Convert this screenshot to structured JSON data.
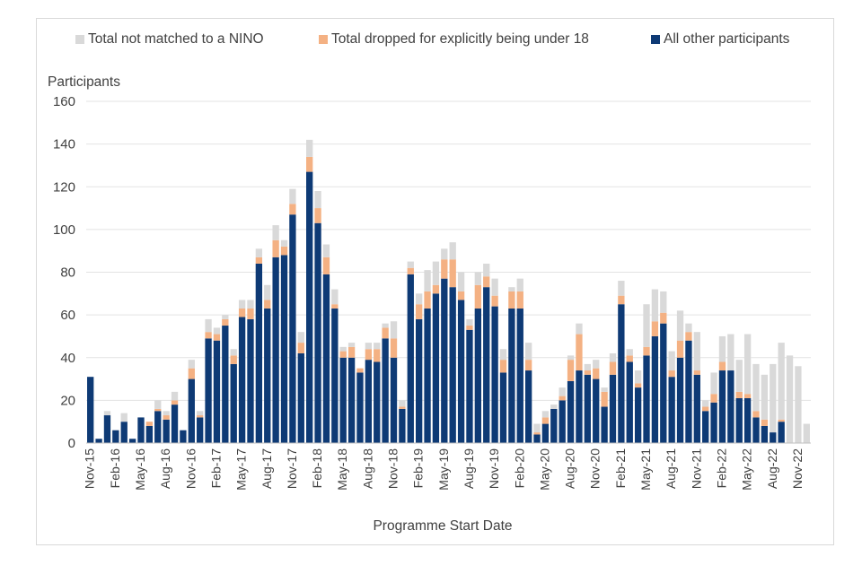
{
  "chart_data": {
    "type": "bar",
    "stacked": true,
    "ylabel": "Participants",
    "xlabel": "Programme Start Date",
    "ylim": [
      0,
      160
    ],
    "yticks": [
      0,
      20,
      40,
      60,
      80,
      100,
      120,
      140,
      160
    ],
    "grid": true,
    "legend_position": "top",
    "tick_labels": [
      "Nov-15",
      "Feb-16",
      "May-16",
      "Aug-16",
      "Nov-16",
      "Feb-17",
      "May-17",
      "Aug-17",
      "Nov-17",
      "Feb-18",
      "May-18",
      "Aug-18",
      "Nov-18",
      "Feb-19",
      "May-19",
      "Aug-19",
      "Nov-19",
      "Feb-20",
      "May-20",
      "Aug-20",
      "Nov-20",
      "Feb-21",
      "May-21",
      "Aug-21",
      "Nov-21",
      "Feb-22",
      "May-22",
      "Aug-22",
      "Nov-22"
    ],
    "series": [
      {
        "name": "All other participants",
        "color": "#0e3a75",
        "values": [
          31,
          2,
          13,
          6,
          10,
          2,
          12,
          8,
          15,
          11,
          18,
          6,
          30,
          12,
          49,
          48,
          55,
          37,
          59,
          58,
          84,
          63,
          87,
          88,
          107,
          42,
          127,
          103,
          79,
          63,
          40,
          40,
          33,
          39,
          38,
          49,
          40,
          16,
          79,
          58,
          63,
          70,
          77,
          73,
          67,
          53,
          63,
          73,
          64,
          33,
          63,
          63,
          34,
          4,
          9,
          16,
          20,
          29,
          34,
          32,
          30,
          17,
          32,
          65,
          38,
          26,
          41,
          50,
          56,
          31,
          40,
          48,
          32,
          15,
          19,
          34,
          34,
          21,
          21,
          12,
          8,
          5,
          10,
          0,
          0,
          0
        ]
      },
      {
        "name": "Total dropped for explicitly being under 18",
        "color": "#f4b183",
        "values": [
          0,
          0,
          0,
          0,
          0,
          0,
          0,
          2,
          1,
          2,
          2,
          0,
          5,
          1,
          3,
          3,
          3,
          4,
          4,
          5,
          3,
          4,
          8,
          4,
          5,
          5,
          7,
          7,
          8,
          2,
          3,
          5,
          2,
          5,
          6,
          5,
          9,
          1,
          3,
          7,
          8,
          4,
          9,
          13,
          4,
          2,
          11,
          5,
          5,
          6,
          8,
          8,
          5,
          1,
          3,
          0,
          2,
          10,
          17,
          2,
          5,
          7,
          6,
          4,
          3,
          2,
          4,
          7,
          5,
          3,
          8,
          4,
          2,
          2,
          4,
          4,
          0,
          3,
          2,
          3,
          3,
          0,
          1,
          0,
          0,
          0
        ]
      },
      {
        "name": "Total not matched to a NINO",
        "color": "#d9d9d9",
        "values": [
          0,
          0,
          2,
          0,
          4,
          0,
          0,
          0,
          4,
          2,
          4,
          0,
          4,
          2,
          6,
          3,
          2,
          3,
          4,
          4,
          4,
          7,
          7,
          3,
          7,
          5,
          8,
          8,
          6,
          7,
          2,
          2,
          0,
          3,
          3,
          2,
          8,
          3,
          3,
          5,
          10,
          11,
          5,
          8,
          9,
          3,
          6,
          6,
          8,
          5,
          2,
          6,
          8,
          4,
          3,
          2,
          4,
          2,
          5,
          3,
          4,
          2,
          4,
          7,
          3,
          6,
          20,
          15,
          10,
          9,
          14,
          4,
          18,
          3,
          10,
          12,
          17,
          15,
          28,
          22,
          21,
          32,
          36,
          41,
          36,
          9
        ]
      }
    ]
  }
}
